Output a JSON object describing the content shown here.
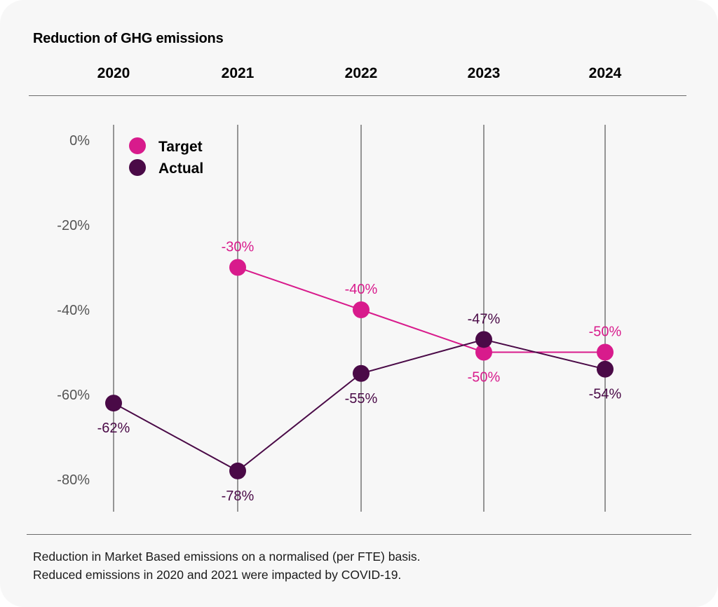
{
  "colors": {
    "target": "#d81b8c",
    "actual": "#4a0a47",
    "gridline": "#333333",
    "axis_text": "#555555",
    "background": "#f7f7f7"
  },
  "chart_data": {
    "type": "line",
    "title": "Reduction of GHG emissions",
    "categories": [
      "2020",
      "2021",
      "2022",
      "2023",
      "2024"
    ],
    "ylim": [
      -90,
      0
    ],
    "yticks": [
      0,
      -20,
      -40,
      -60,
      -80
    ],
    "ytick_labels": [
      "0%",
      "-20%",
      "-40%",
      "-60%",
      "-80%"
    ],
    "grid": "vertical",
    "legend_position": "top-left",
    "series": [
      {
        "name": "Target",
        "color": "#d81b8c",
        "values": [
          null,
          -30,
          -40,
          -50,
          -50
        ],
        "labels": [
          "",
          "-30%",
          "-40%",
          "-50%",
          "-50%"
        ],
        "label_positions": [
          "",
          "above",
          "above",
          "below",
          "above"
        ]
      },
      {
        "name": "Actual",
        "color": "#4a0a47",
        "values": [
          -62,
          -78,
          -55,
          -47,
          -54
        ],
        "labels": [
          "-62%",
          "-78%",
          "-55%",
          "-47%",
          "-54%"
        ],
        "label_positions": [
          "below",
          "below",
          "below",
          "above",
          "below"
        ]
      }
    ]
  },
  "footnote": {
    "line1": "Reduction in Market Based emissions on a normalised (per FTE) basis.",
    "line2": "Reduced emissions in 2020 and 2021 were impacted by COVID-19."
  }
}
